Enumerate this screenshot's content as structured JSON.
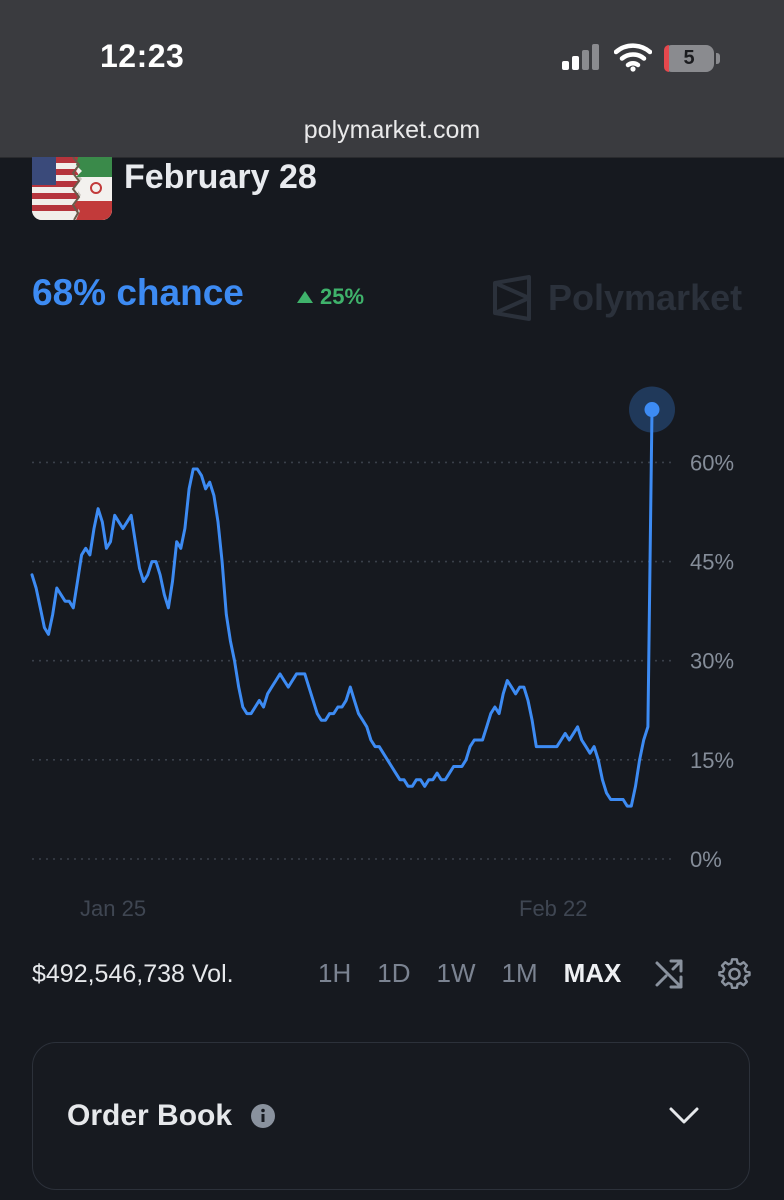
{
  "status_bar": {
    "time": "12:23",
    "battery": "5"
  },
  "browser": {
    "url": "polymarket.com"
  },
  "market": {
    "title": "February 28",
    "chance": "68% chance",
    "change": "25%",
    "brand": "Polymarket"
  },
  "controls": {
    "volume": "$492,546,738 Vol.",
    "ranges": [
      "1H",
      "1D",
      "1W",
      "1M",
      "MAX"
    ],
    "active_range": "MAX"
  },
  "order_book": {
    "title": "Order Book"
  },
  "colors": {
    "accent": "#3d8bf3",
    "positive": "#3fb26b",
    "background": "#16191f"
  },
  "chart_data": {
    "type": "line",
    "y_ticks": [
      0,
      15,
      30,
      45,
      60
    ],
    "y_tick_labels": [
      "0%",
      "15%",
      "30%",
      "45%",
      "60%"
    ],
    "x_tick_labels": [
      "Jan 25",
      "Feb 22"
    ],
    "ylim": [
      0,
      68
    ],
    "grid": true,
    "series": [
      {
        "values": [
          43,
          41,
          38,
          35,
          34,
          37,
          41,
          40,
          39,
          39,
          38,
          42,
          46,
          47,
          46,
          50,
          53,
          51,
          47,
          48,
          52,
          51,
          50,
          51,
          52,
          48,
          44,
          42,
          43,
          45,
          45,
          43,
          40,
          38,
          42,
          48,
          47,
          50,
          56,
          59,
          59,
          58,
          56,
          57,
          55,
          51,
          45,
          37,
          33,
          30,
          26,
          23,
          22,
          22,
          23,
          24,
          23,
          25,
          26,
          27,
          28,
          27,
          26,
          27,
          28,
          28,
          28,
          26,
          24,
          22,
          21,
          21,
          22,
          22,
          23,
          23,
          24,
          26,
          24,
          22,
          21,
          20,
          18,
          17,
          17,
          16,
          15,
          14,
          13,
          12,
          12,
          11,
          11,
          12,
          12,
          11,
          12,
          12,
          13,
          12,
          12,
          13,
          14,
          14,
          14,
          15,
          17,
          18,
          18,
          18,
          20,
          22,
          23,
          22,
          25,
          27,
          26,
          25,
          26,
          26,
          24,
          21,
          17,
          17,
          17,
          17,
          17,
          17,
          18,
          19,
          18,
          19,
          20,
          18,
          17,
          16,
          17,
          15,
          12,
          10,
          9,
          9,
          9,
          9,
          8,
          8,
          11,
          15,
          18,
          20,
          68
        ]
      }
    ]
  }
}
